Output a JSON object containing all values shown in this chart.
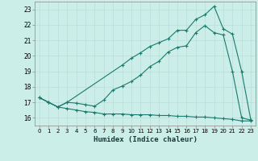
{
  "xlabel": "Humidex (Indice chaleur)",
  "background_color": "#cceee8",
  "grid_color": "#bbdddb",
  "line_color": "#1a7a6e",
  "xlim": [
    -0.5,
    23.5
  ],
  "ylim": [
    15.5,
    23.5
  ],
  "x_ticks": [
    0,
    1,
    2,
    3,
    4,
    5,
    6,
    7,
    8,
    9,
    10,
    11,
    12,
    13,
    14,
    15,
    16,
    17,
    18,
    19,
    20,
    21,
    22,
    23
  ],
  "y_ticks": [
    16,
    17,
    18,
    19,
    20,
    21,
    22,
    23
  ],
  "line1_x": [
    0,
    1,
    2,
    3,
    4,
    5,
    6,
    7,
    8,
    9,
    10,
    11,
    12,
    13,
    14,
    15,
    16,
    17,
    18,
    19,
    20,
    21,
    22,
    23
  ],
  "line1_y": [
    17.3,
    17.0,
    16.7,
    16.6,
    16.5,
    16.4,
    16.35,
    16.25,
    16.25,
    16.25,
    16.2,
    16.2,
    16.2,
    16.15,
    16.15,
    16.1,
    16.1,
    16.05,
    16.05,
    16.0,
    15.95,
    15.9,
    15.8,
    15.8
  ],
  "line2_x": [
    0,
    1,
    2,
    3,
    4,
    5,
    6,
    7,
    8,
    9,
    10,
    11,
    12,
    13,
    14,
    15,
    16,
    17,
    18,
    19,
    20,
    21,
    22,
    23
  ],
  "line2_y": [
    17.3,
    17.0,
    16.7,
    17.0,
    16.95,
    16.85,
    16.75,
    17.15,
    17.8,
    18.05,
    18.35,
    18.75,
    19.3,
    19.65,
    20.25,
    20.55,
    20.65,
    21.5,
    21.95,
    21.5,
    21.35,
    19.0,
    16.0,
    15.85
  ],
  "line3_x": [
    0,
    1,
    2,
    3,
    9,
    10,
    11,
    12,
    13,
    14,
    15,
    16,
    17,
    18,
    19,
    20,
    21,
    22,
    23
  ],
  "line3_y": [
    17.3,
    17.0,
    16.7,
    17.0,
    19.4,
    19.85,
    20.2,
    20.6,
    20.85,
    21.1,
    21.65,
    21.65,
    22.35,
    22.65,
    23.2,
    21.75,
    21.4,
    19.0,
    15.85
  ]
}
